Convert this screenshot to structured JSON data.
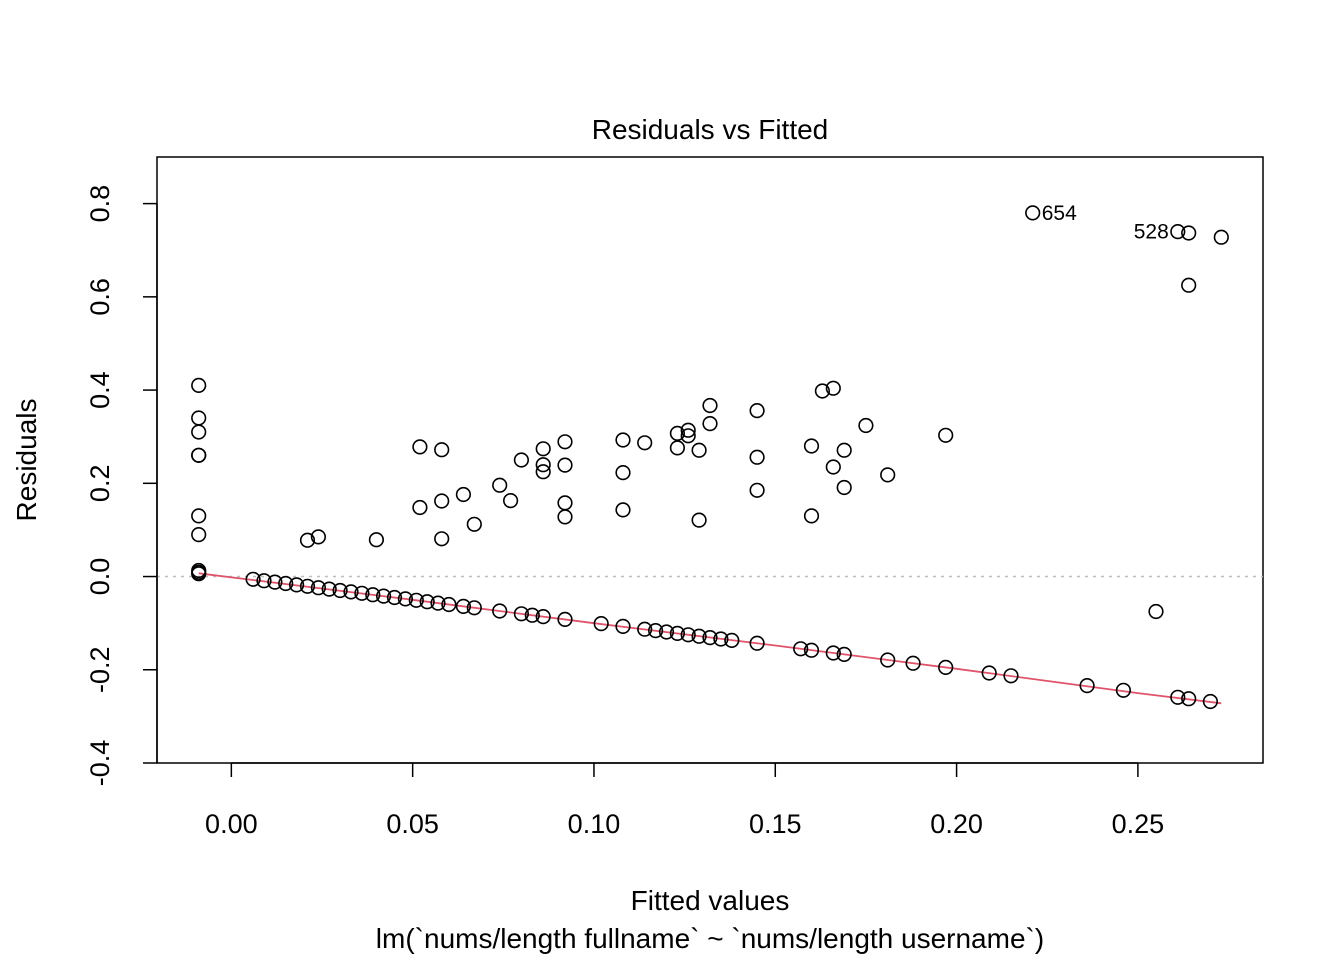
{
  "chart_data": {
    "type": "scatter",
    "title": "Residuals vs Fitted",
    "xlabel": "Fitted values",
    "xlabel_sub": "lm(`nums/length fullname` ~ `nums/length username`)",
    "ylabel": "Residuals",
    "xlim": [
      -0.0205,
      0.2845
    ],
    "ylim": [
      -0.4,
      0.9
    ],
    "x_ticks": [
      0.0,
      0.05,
      0.1,
      0.15,
      0.2,
      0.25
    ],
    "x_tick_labels": [
      "0.00",
      "0.05",
      "0.10",
      "0.15",
      "0.20",
      "0.25"
    ],
    "y_ticks": [
      -0.4,
      -0.2,
      0.0,
      0.2,
      0.4,
      0.6,
      0.8
    ],
    "y_tick_labels": [
      "-0.4",
      "-0.2",
      "0.0",
      "0.2",
      "0.4",
      "0.6",
      "0.8"
    ],
    "reference_line": {
      "y": 0,
      "style": "dotted",
      "color": "#bebebe"
    },
    "smoother": {
      "color": "#df536b",
      "x": [
        -0.009,
        0.05,
        0.1,
        0.15,
        0.2,
        0.25,
        0.273
      ],
      "y": [
        0.007,
        -0.05,
        -0.1,
        -0.148,
        -0.198,
        -0.25,
        -0.272
      ]
    },
    "point_labels": [
      {
        "text": "654",
        "x": 0.221,
        "y": 0.78
      },
      {
        "text": "528",
        "x": 0.261,
        "y": 0.74
      }
    ],
    "series": [
      {
        "marker": "open-circle",
        "color": "#000000",
        "points": [
          [
            -0.009,
            0.41
          ],
          [
            -0.009,
            0.34
          ],
          [
            -0.009,
            0.31
          ],
          [
            -0.009,
            0.26
          ],
          [
            -0.009,
            0.26
          ],
          [
            -0.009,
            0.13
          ],
          [
            -0.009,
            0.09
          ],
          [
            -0.009,
            0.013
          ],
          [
            -0.009,
            0.009
          ],
          [
            -0.009,
            0.006
          ],
          [
            0.006,
            -0.006
          ],
          [
            0.009,
            -0.009
          ],
          [
            0.012,
            -0.012
          ],
          [
            0.015,
            -0.015
          ],
          [
            0.018,
            -0.018
          ],
          [
            0.021,
            -0.021
          ],
          [
            0.024,
            -0.024
          ],
          [
            0.027,
            -0.027
          ],
          [
            0.03,
            -0.03
          ],
          [
            0.033,
            -0.033
          ],
          [
            0.036,
            -0.036
          ],
          [
            0.039,
            -0.039
          ],
          [
            0.042,
            -0.042
          ],
          [
            0.045,
            -0.045
          ],
          [
            0.048,
            -0.048
          ],
          [
            0.051,
            -0.051
          ],
          [
            0.054,
            -0.054
          ],
          [
            0.057,
            -0.057
          ],
          [
            0.06,
            -0.06
          ],
          [
            0.064,
            -0.064
          ],
          [
            0.067,
            -0.067
          ],
          [
            0.074,
            -0.074
          ],
          [
            0.08,
            -0.08
          ],
          [
            0.083,
            -0.083
          ],
          [
            0.086,
            -0.086
          ],
          [
            0.092,
            -0.092
          ],
          [
            0.102,
            -0.101
          ],
          [
            0.108,
            -0.107
          ],
          [
            0.114,
            -0.113
          ],
          [
            0.117,
            -0.116
          ],
          [
            0.12,
            -0.119
          ],
          [
            0.123,
            -0.122
          ],
          [
            0.126,
            -0.125
          ],
          [
            0.129,
            -0.128
          ],
          [
            0.132,
            -0.131
          ],
          [
            0.135,
            -0.134
          ],
          [
            0.138,
            -0.137
          ],
          [
            0.145,
            -0.143
          ],
          [
            0.157,
            -0.155
          ],
          [
            0.16,
            -0.158
          ],
          [
            0.166,
            -0.164
          ],
          [
            0.169,
            -0.167
          ],
          [
            0.181,
            -0.179
          ],
          [
            0.188,
            -0.186
          ],
          [
            0.197,
            -0.195
          ],
          [
            0.209,
            -0.207
          ],
          [
            0.215,
            -0.213
          ],
          [
            0.236,
            -0.234
          ],
          [
            0.246,
            -0.244
          ],
          [
            0.261,
            -0.259
          ],
          [
            0.264,
            -0.262
          ],
          [
            0.27,
            -0.268
          ],
          [
            0.021,
            0.078
          ],
          [
            0.024,
            0.085
          ],
          [
            0.04,
            0.079
          ],
          [
            0.052,
            0.278
          ],
          [
            0.052,
            0.148
          ],
          [
            0.058,
            0.272
          ],
          [
            0.058,
            0.162
          ],
          [
            0.058,
            0.081
          ],
          [
            0.064,
            0.176
          ],
          [
            0.067,
            0.112
          ],
          [
            0.074,
            0.196
          ],
          [
            0.077,
            0.163
          ],
          [
            0.08,
            0.25
          ],
          [
            0.086,
            0.274
          ],
          [
            0.086,
            0.24
          ],
          [
            0.086,
            0.225
          ],
          [
            0.092,
            0.289
          ],
          [
            0.092,
            0.239
          ],
          [
            0.092,
            0.158
          ],
          [
            0.092,
            0.128
          ],
          [
            0.108,
            0.293
          ],
          [
            0.108,
            0.223
          ],
          [
            0.108,
            0.143
          ],
          [
            0.114,
            0.287
          ],
          [
            0.123,
            0.307
          ],
          [
            0.123,
            0.276
          ],
          [
            0.126,
            0.314
          ],
          [
            0.126,
            0.302
          ],
          [
            0.129,
            0.271
          ],
          [
            0.129,
            0.121
          ],
          [
            0.132,
            0.367
          ],
          [
            0.132,
            0.328
          ],
          [
            0.145,
            0.356
          ],
          [
            0.145,
            0.256
          ],
          [
            0.145,
            0.185
          ],
          [
            0.16,
            0.28
          ],
          [
            0.16,
            0.13
          ],
          [
            0.163,
            0.398
          ],
          [
            0.166,
            0.404
          ],
          [
            0.166,
            0.235
          ],
          [
            0.169,
            0.271
          ],
          [
            0.169,
            0.191
          ],
          [
            0.175,
            0.324
          ],
          [
            0.181,
            0.218
          ],
          [
            0.197,
            0.303
          ],
          [
            0.221,
            0.78
          ],
          [
            0.255,
            -0.075
          ],
          [
            0.261,
            0.74
          ],
          [
            0.264,
            0.737
          ],
          [
            0.264,
            0.625
          ],
          [
            0.273,
            0.728
          ]
        ]
      }
    ]
  }
}
